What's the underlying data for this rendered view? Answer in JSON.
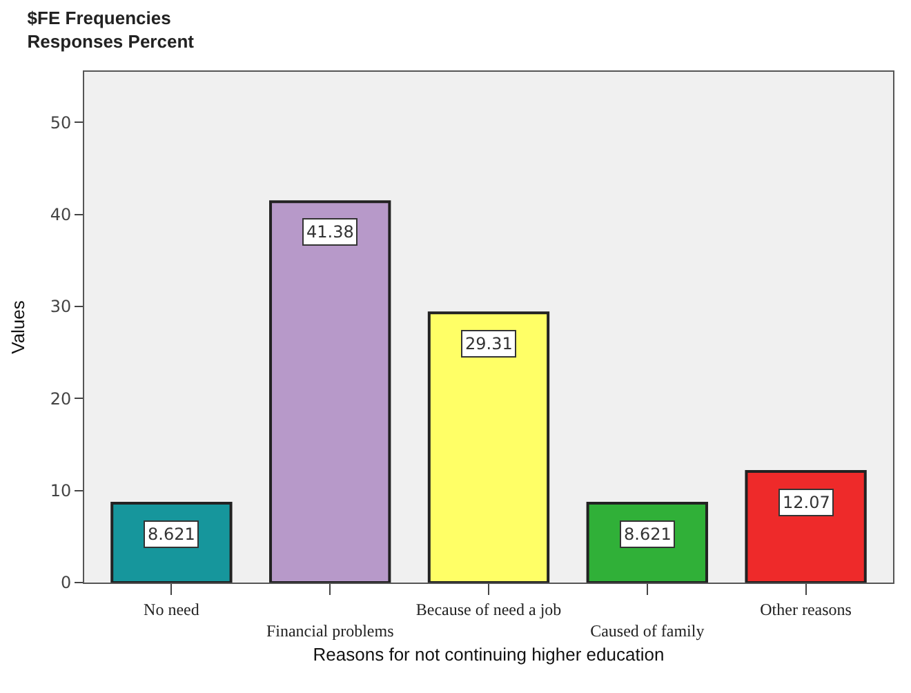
{
  "chart_data": {
    "type": "bar",
    "title": "$FE Frequencies\nResponses Percent",
    "xlabel": "Reasons for not continuing higher education",
    "ylabel": "Values",
    "categories": [
      "No need",
      "Financial problems",
      "Because of need a job",
      "Caused of family",
      "Other reasons"
    ],
    "values": [
      8.621,
      41.38,
      29.31,
      8.621,
      12.07
    ],
    "colors": [
      "#16969c",
      "#b799c9",
      "#ffff66",
      "#30b038",
      "#ee2a2a"
    ],
    "ylim": [
      0,
      55.5
    ],
    "yticks": [
      0,
      10,
      20,
      30,
      40,
      50
    ],
    "grid": false,
    "data_labels": true
  }
}
